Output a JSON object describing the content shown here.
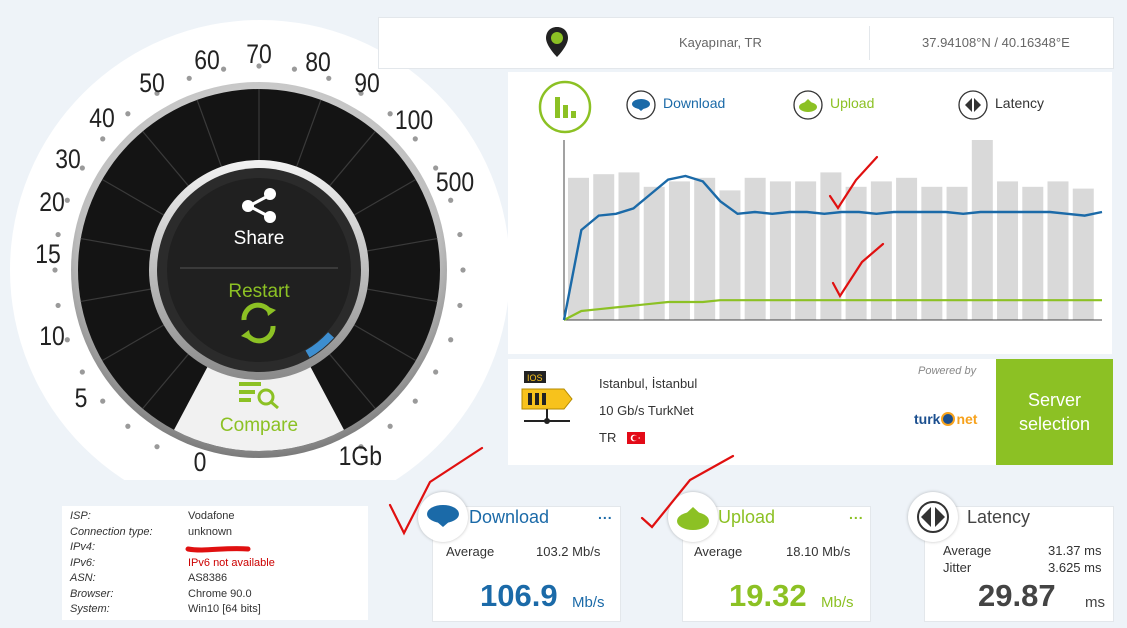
{
  "gauge": {
    "scale_labels": [
      "0",
      "5",
      "10",
      "15",
      "20",
      "30",
      "40",
      "50",
      "60",
      "70",
      "80",
      "90",
      "100",
      "500",
      "1Gb"
    ],
    "share_label": "Share",
    "restart_label": "Restart",
    "compare_label": "Compare",
    "progress": 0.12
  },
  "location": {
    "city": "Kayapınar, TR",
    "coordinates": "37.94108°N / 40.16348°E"
  },
  "chart": {
    "legend": {
      "download": "Download",
      "upload": "Upload",
      "latency": "Latency"
    },
    "colors": {
      "download": "#1b6aa8",
      "upload": "#8cc124",
      "bars": "#d9d9d9"
    }
  },
  "chart_data": {
    "type": "line",
    "series": [
      {
        "name": "Download",
        "values": [
          0,
          50,
          58,
          59,
          62,
          70,
          78,
          80,
          77,
          66,
          59,
          60,
          59,
          60,
          60,
          59,
          60,
          60,
          59,
          60,
          60,
          60,
          60,
          59,
          60,
          60,
          60,
          60,
          60,
          59,
          58,
          60
        ]
      },
      {
        "name": "Upload",
        "values": [
          0,
          5,
          6,
          7,
          8,
          9,
          10,
          10,
          10,
          11,
          11,
          11,
          11,
          11,
          11,
          11,
          11,
          11,
          11,
          11,
          11,
          11,
          11,
          11,
          11,
          11,
          11,
          11,
          11,
          11,
          11,
          11
        ]
      },
      {
        "name": "Latency",
        "values": [
          79,
          81,
          82,
          74,
          77,
          79,
          72,
          79,
          77,
          77,
          82,
          74,
          77,
          79,
          74,
          74,
          100,
          77,
          74,
          77,
          73
        ]
      }
    ]
  },
  "server": {
    "city": "Istanbul, İstanbul",
    "provider": "10 Gb/s TurkNet",
    "country": "TR",
    "powered_by": "Powered by",
    "logo_text_a": "turk",
    "logo_text_b": "net",
    "button_label": "Server selection"
  },
  "isp": {
    "rows": [
      {
        "key": "ISP:",
        "value": "Vodafone",
        "color": "#333333"
      },
      {
        "key": "Connection type:",
        "value": "unknown",
        "color": "#333333"
      },
      {
        "key": "IPv4:",
        "value": "",
        "color": "#333333"
      },
      {
        "key": "IPv6:",
        "value": "IPv6 not available",
        "color": "#cc0000"
      },
      {
        "key": "ASN:",
        "value": "AS8386",
        "color": "#333333"
      },
      {
        "key": "Browser:",
        "value": "Chrome 90.0",
        "color": "#333333"
      },
      {
        "key": "System:",
        "value": "Win10 [64 bits]",
        "color": "#333333"
      }
    ]
  },
  "results": {
    "download": {
      "title": "Download",
      "avg_label": "Average",
      "avg_value": "103.2 Mb/s",
      "value": "106.9",
      "unit": "Mb/s",
      "dots": "..."
    },
    "upload": {
      "title": "Upload",
      "avg_label": "Average",
      "avg_value": "18.10 Mb/s",
      "value": "19.32",
      "unit": "Mb/s",
      "dots": "..."
    },
    "latency": {
      "title": "Latency",
      "avg_label": "Average",
      "avg_value": "31.37 ms",
      "jitter_label": "Jitter",
      "jitter_value": "3.625 ms",
      "value": "29.87",
      "unit": "ms"
    }
  }
}
